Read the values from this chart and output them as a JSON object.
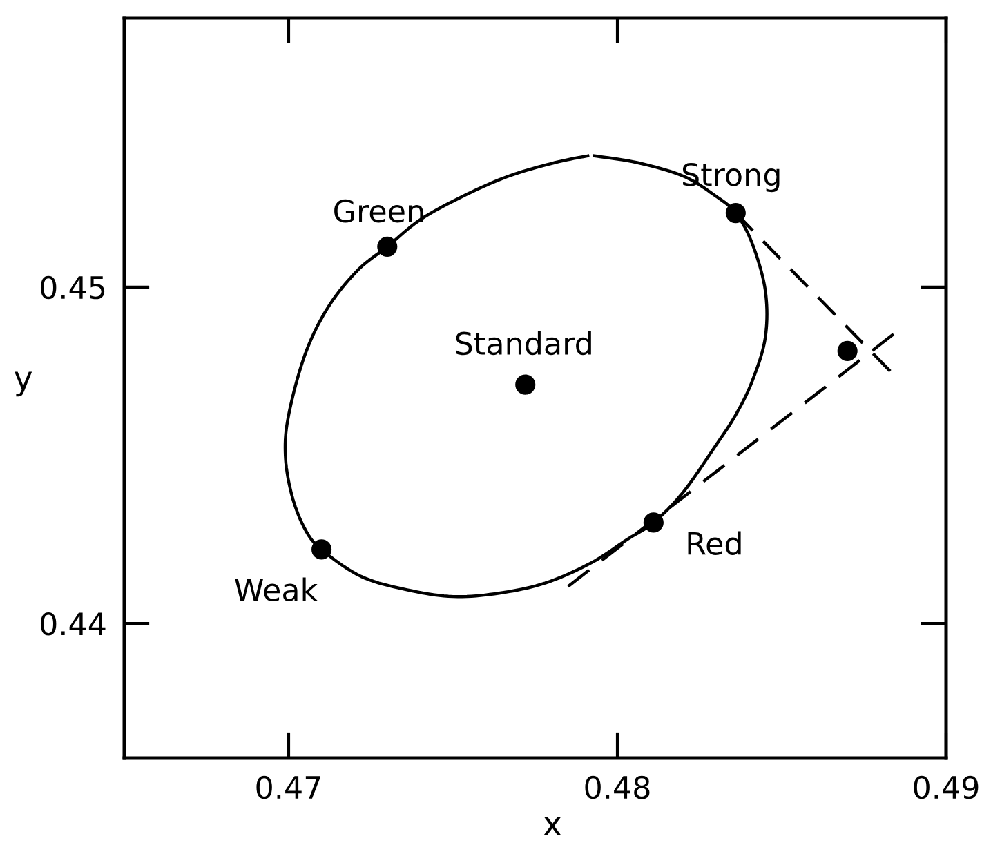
{
  "chart_data": {
    "type": "scatter",
    "xlabel": "x",
    "ylabel": "y",
    "xlim": [
      0.465,
      0.49
    ],
    "ylim": [
      0.436,
      0.458
    ],
    "xticks": [
      0.47,
      0.48,
      0.49
    ],
    "yticks": [
      0.44,
      0.45
    ],
    "line_style": "solid",
    "series": [
      {
        "type": "line",
        "color": "#000000",
        "x": [
          0.4793,
          0.4806,
          0.482,
          0.483,
          0.4836,
          0.4841,
          0.4845,
          0.4845,
          0.4841,
          0.4836,
          0.483,
          0.482,
          0.4811,
          0.4803,
          0.4792,
          0.4778,
          0.4764,
          0.475,
          0.4736,
          0.4722,
          0.471,
          0.4705,
          0.4701,
          0.4699,
          0.47,
          0.4705,
          0.4712,
          0.4721,
          0.473,
          0.474,
          0.4753,
          0.4767,
          0.4781,
          0.4791
        ],
        "values": [
          0.4539,
          0.4537,
          0.4533,
          0.4527,
          0.4522,
          0.4513,
          0.4499,
          0.4485,
          0.4472,
          0.4462,
          0.4453,
          0.4439,
          0.443,
          0.4425,
          0.4418,
          0.4412,
          0.4409,
          0.4408,
          0.441,
          0.4414,
          0.4422,
          0.4428,
          0.4438,
          0.445,
          0.4462,
          0.448,
          0.4494,
          0.4505,
          0.4512,
          0.452,
          0.4527,
          0.4533,
          0.4537,
          0.4539
        ]
      },
      {
        "type": "line",
        "color": "#000000",
        "line_style": "dashed",
        "x": [
          0.4836,
          0.4883
        ],
        "values": [
          0.4522,
          0.4475
        ]
      },
      {
        "type": "line",
        "color": "#000000",
        "line_style": "dashed",
        "x": [
          0.4785,
          0.4884
        ],
        "values": [
          0.4411,
          0.4486
        ]
      },
      {
        "color": "#000000",
        "marker": "circle",
        "x": [
          0.473,
          0.4772,
          0.4836,
          0.471,
          0.4811,
          0.487
        ],
        "values": [
          0.4512,
          0.4471,
          0.4522,
          0.4422,
          0.443,
          0.4481
        ]
      }
    ],
    "annotations": [
      {
        "text": "Green",
        "x": 0.473,
        "y": 0.4512
      },
      {
        "text": "Standard",
        "x": 0.4772,
        "y": 0.4471
      },
      {
        "text": "Strong",
        "x": 0.4836,
        "y": 0.4522
      },
      {
        "text": "Red",
        "x": 0.4811,
        "y": 0.443
      },
      {
        "text": "Weak",
        "x": 0.471,
        "y": 0.4422
      }
    ]
  }
}
